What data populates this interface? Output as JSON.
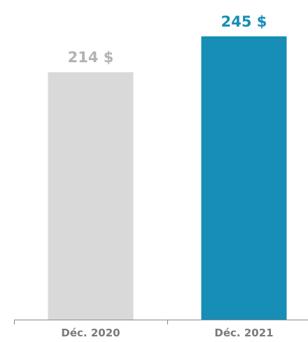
{
  "chart_data": {
    "type": "bar",
    "categories": [
      "Déc. 2020",
      "Déc. 2021"
    ],
    "values": [
      214,
      245
    ],
    "value_labels": [
      "214 $",
      "245 $"
    ],
    "colors": [
      "#d9d9d9",
      "#168eb5"
    ],
    "label_colors": [
      "#b3b3b3",
      "#168eb5"
    ],
    "axis_color": "#8a8a8a",
    "ylim": [
      0,
      245
    ],
    "title": "",
    "xlabel": "",
    "ylabel": "",
    "grid": false,
    "legend": "none"
  }
}
